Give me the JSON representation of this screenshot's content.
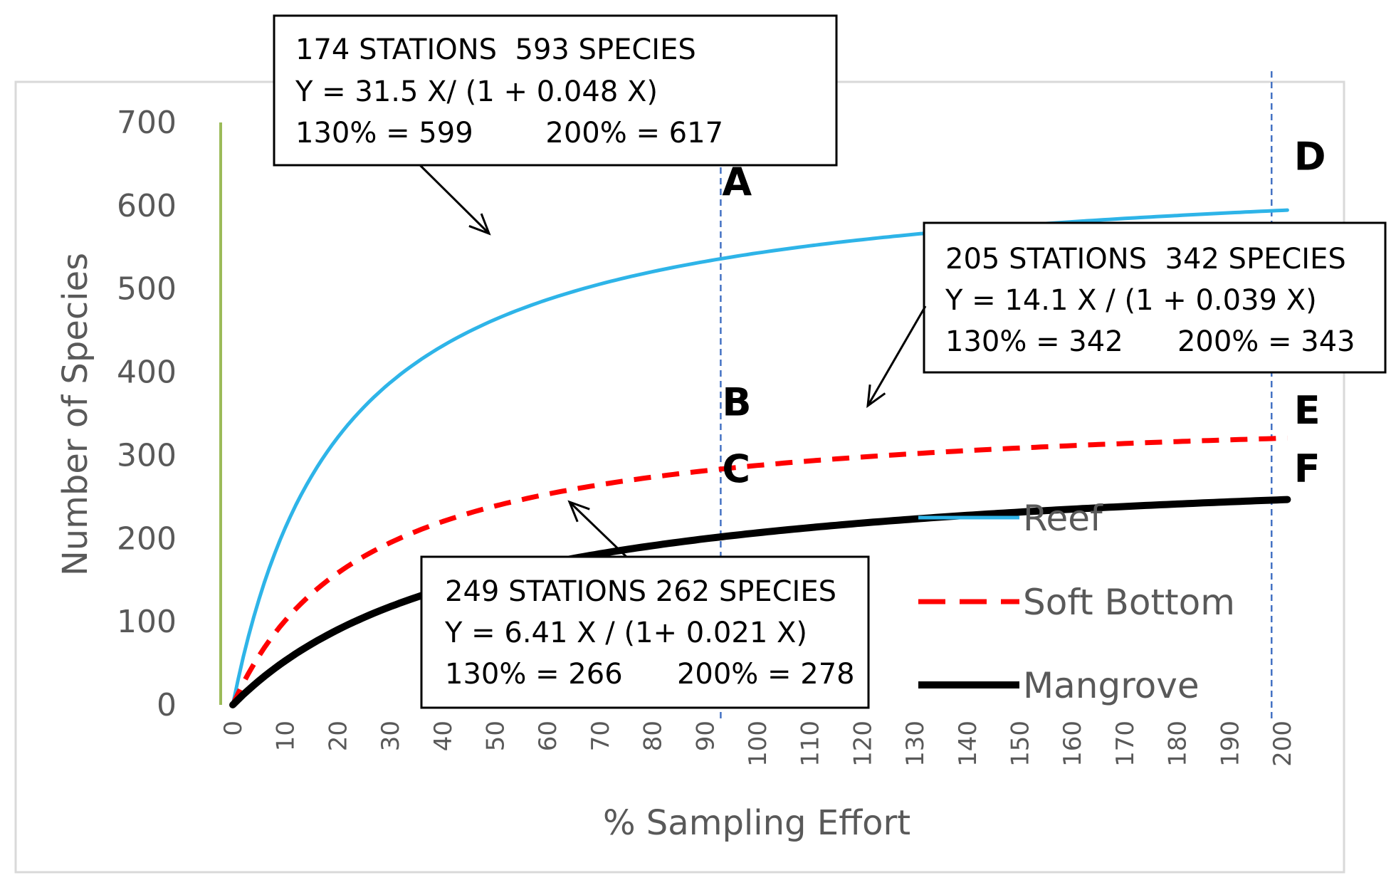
{
  "chart_data": {
    "type": "line",
    "xlabel": "% Sampling Effort",
    "ylabel": "Number of Species",
    "xlim": [
      0,
      200
    ],
    "ylim": [
      0,
      700
    ],
    "x_ticks": [
      "0",
      "10",
      "20",
      "30",
      "40",
      "50",
      "60",
      "70",
      "80",
      "90",
      "100",
      "110",
      "120",
      "130",
      "140",
      "150",
      "160",
      "170",
      "180",
      "190",
      "200"
    ],
    "y_ticks": [
      "0",
      "100",
      "200",
      "300",
      "400",
      "500",
      "600",
      "700"
    ],
    "grid": false,
    "legend": "right",
    "series": [
      {
        "name": "Reef",
        "color": "#2EB4E8",
        "style": "solid",
        "model": {
          "a": 31.5,
          "b": 0.048
        }
      },
      {
        "name": "Soft Bottom",
        "color": "#FF0000",
        "style": "dashed",
        "model": {
          "a": 14.1,
          "b": 0.039
        }
      },
      {
        "name": "Mangrove",
        "color": "#000000",
        "style": "solid-thick",
        "model": {
          "a": 6.41,
          "b": 0.021
        }
      }
    ],
    "reference_lines": [
      {
        "x": 93,
        "style": "dashed",
        "color": "#4472C4"
      },
      {
        "x": 198,
        "style": "dashed",
        "color": "#4472C4"
      }
    ],
    "points": [
      {
        "label": "A",
        "x": 93,
        "y": 630
      },
      {
        "label": "B",
        "x": 93,
        "y": 365
      },
      {
        "label": "C",
        "x": 93,
        "y": 285
      },
      {
        "label": "D",
        "x": 202,
        "y": 660
      },
      {
        "label": "E",
        "x": 202,
        "y": 355
      },
      {
        "label": "F",
        "x": 202,
        "y": 285
      }
    ],
    "annotations": [
      {
        "series": "Reef",
        "lines": [
          "174 STATIONS  593 SPECIES",
          "Y = 31.5 X/ (1 + 0.048 X)",
          "130% = 599        200% = 617"
        ]
      },
      {
        "series": "Soft Bottom",
        "lines": [
          "205 STATIONS  342 SPECIES",
          "Y = 14.1 X / (1 + 0.039 X)",
          "130% = 342      200% = 343"
        ]
      },
      {
        "series": "Mangrove",
        "lines": [
          "249 STATIONS 262 SPECIES",
          "Y = 6.41 X / (1+ 0.021 X)",
          "130% = 266      200% = 278"
        ]
      }
    ]
  }
}
